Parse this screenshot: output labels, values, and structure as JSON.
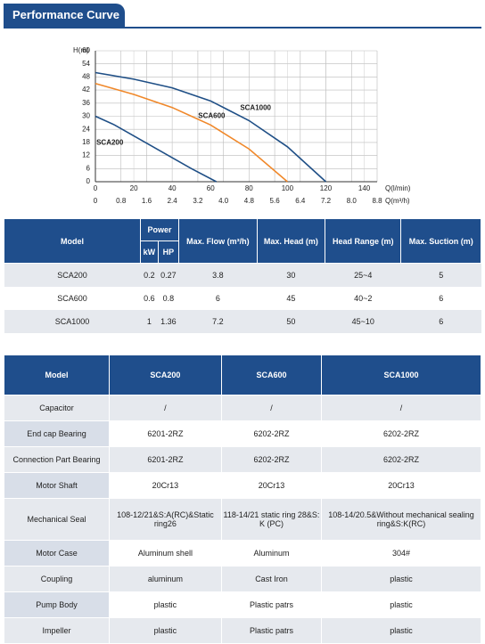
{
  "header": {
    "title": "Performance Curve"
  },
  "chart_data": {
    "type": "line",
    "y_label": "H(m)",
    "x_label": "Q(l/min)",
    "x2_label": "Q(m³/h)",
    "xlim": [
      0,
      146.7
    ],
    "xticks": [
      0,
      20,
      40,
      60,
      80,
      100,
      120,
      140
    ],
    "x2lim": [
      0,
      8.8
    ],
    "x2ticks": [
      0,
      0.8,
      1.6,
      2.4,
      3.2,
      {
        "value": 4,
        "label": "4.0"
      },
      4.8,
      5.6,
      6.4,
      7.2,
      {
        "value": 8,
        "label": "8.0"
      },
      8.8
    ],
    "ylim": [
      0,
      60
    ],
    "yticks": [
      0,
      6,
      12,
      18,
      24,
      30,
      36,
      42,
      48,
      54,
      60
    ],
    "grid": true,
    "series": [
      {
        "name": "SCA1000",
        "color": "#1f4f86",
        "x": [
          0,
          20,
          40,
          60,
          80,
          100,
          110,
          120
        ],
        "values": [
          50,
          47,
          43,
          37,
          28,
          16,
          8,
          0
        ]
      },
      {
        "name": "SCA600",
        "color": "#f0882a",
        "x": [
          0,
          20,
          40,
          60,
          80,
          100
        ],
        "values": [
          45,
          40,
          34,
          26,
          15,
          0
        ]
      },
      {
        "name": "SCA200",
        "color": "#1f4f86",
        "x": [
          0,
          10,
          20,
          30,
          40,
          50,
          63
        ],
        "values": [
          30,
          26,
          21,
          16,
          11,
          6,
          0
        ]
      }
    ]
  },
  "table1": {
    "header": {
      "model": "Model",
      "power": "Power",
      "kw": "kW",
      "hp": "HP",
      "flow": "Max. Flow (m³/h)",
      "head": "Max. Head (m)",
      "range": "Head Range (m)",
      "suction": "Max. Suction (m)"
    },
    "rows": [
      [
        "SCA200",
        "0.2",
        "0.27",
        "3.8",
        "30",
        "25~4",
        "5"
      ],
      [
        "SCA600",
        "0.6",
        "0.8",
        "6",
        "45",
        "40~2",
        "6"
      ],
      [
        "SCA1000",
        "1",
        "1.36",
        "7.2",
        "50",
        "45~10",
        "6"
      ]
    ]
  },
  "table2": {
    "header": [
      "Model",
      "SCA200",
      "SCA600",
      "SCA1000"
    ],
    "rows": [
      [
        "Capacitor",
        "/",
        "/",
        "/"
      ],
      [
        "End cap Bearing",
        "6201-2RZ",
        "6202-2RZ",
        "6202-2RZ"
      ],
      [
        "Connection Part Bearing",
        "6201-2RZ",
        "6202-2RZ",
        "6202-2RZ"
      ],
      [
        "Motor Shaft",
        "20Cr13",
        "20Cr13",
        "20Cr13"
      ],
      [
        "Mechanical Seal",
        "108-12/21&S:A(RC)&Static ring26",
        "118-14/21 static ring 28&S: K (PC)",
        "108-14/20.5&Without mechanical sealing ring&S:K(RC)"
      ],
      [
        "Motor Case",
        "Aluminum shell",
        "Aluminum",
        "304#"
      ],
      [
        "Coupling",
        "aluminum",
        "Cast Iron",
        "plastic"
      ],
      [
        "Pump Body",
        "plastic",
        "Plastic patrs",
        "plastic"
      ],
      [
        "Impeller",
        "plastic",
        "Plastic patrs",
        "plastic"
      ]
    ]
  }
}
